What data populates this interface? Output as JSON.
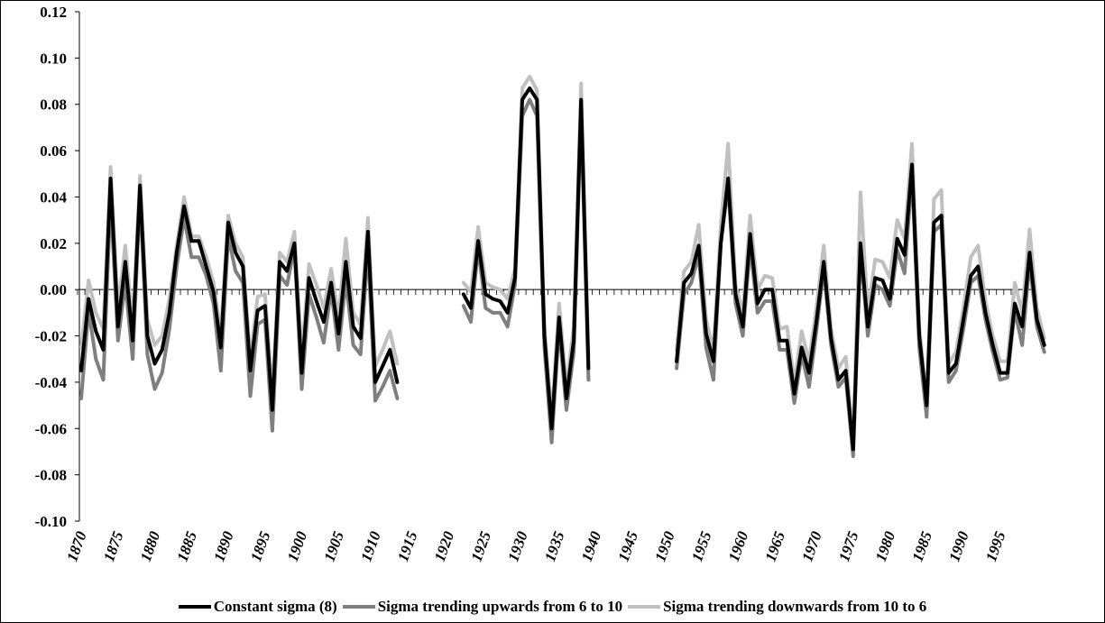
{
  "chart_data": {
    "type": "line",
    "title": "",
    "xlabel": "",
    "ylabel": "",
    "ylim": [
      -0.1,
      0.12
    ],
    "xlim": [
      1870,
      1999
    ],
    "y_ticks": [
      -0.1,
      -0.08,
      -0.06,
      -0.04,
      -0.02,
      0.0,
      0.02,
      0.04,
      0.06,
      0.08,
      0.1,
      0.12
    ],
    "y_tick_labels": [
      "-0.10",
      "-0.08",
      "-0.06",
      "-0.04",
      "-0.02",
      "0.00",
      "0.02",
      "0.04",
      "0.06",
      "0.08",
      "0.10",
      "0.12"
    ],
    "x_tick_labels": [
      "1870",
      "1875",
      "1880",
      "1885",
      "1890",
      "1895",
      "1900",
      "1905",
      "1910",
      "1915",
      "1920",
      "1925",
      "1930",
      "1935",
      "1940",
      "1945",
      "1950",
      "1955",
      "1960",
      "1965",
      "1970",
      "1975",
      "1980",
      "1985",
      "1990",
      "1995"
    ],
    "legend_position": "bottom",
    "grid": false,
    "series": [
      {
        "name": "Constant sigma (8)",
        "color": "#000000",
        "segments": [
          {
            "x_start": 1870,
            "values": [
              -0.035,
              -0.004,
              -0.018,
              -0.026,
              0.048,
              -0.016,
              0.012,
              -0.022,
              0.045,
              -0.02,
              -0.032,
              -0.026,
              -0.01,
              0.016,
              0.036,
              0.021,
              0.021,
              0.01,
              -0.001,
              -0.025,
              0.029,
              0.016,
              0.01,
              -0.035,
              -0.009,
              -0.007,
              -0.052,
              0.012,
              0.008,
              0.02,
              -0.036,
              0.005,
              -0.005,
              -0.014,
              0.003,
              -0.019,
              0.012,
              -0.016,
              -0.021,
              0.025,
              -0.04,
              -0.033,
              -0.026,
              -0.04
            ]
          },
          {
            "x_start": 1922,
            "values": [
              -0.002,
              -0.008,
              0.021,
              -0.002,
              -0.004,
              -0.005,
              -0.01,
              0.005,
              0.082,
              0.087,
              0.082,
              -0.02,
              -0.06,
              -0.012,
              -0.047,
              -0.022,
              0.082,
              -0.034
            ]
          },
          {
            "x_start": 1951,
            "values": [
              -0.031,
              0.003,
              0.007,
              0.019,
              -0.019,
              -0.031,
              0.02,
              0.048,
              -0.002,
              -0.016,
              0.024,
              -0.006,
              0,
              0,
              -0.022,
              -0.022,
              -0.045,
              -0.025,
              -0.036,
              -0.014,
              0.012,
              -0.021,
              -0.039,
              -0.035,
              -0.069,
              0.02,
              -0.016,
              0.005,
              0.004,
              -0.004,
              0.022,
              0.015,
              0.054,
              -0.02,
              -0.05,
              0.029,
              0.032,
              -0.036,
              -0.032,
              -0.013,
              0.006,
              0.01,
              -0.01,
              -0.024,
              -0.036,
              -0.036,
              -0.006,
              -0.016,
              0.016,
              -0.013,
              -0.024
            ]
          }
        ]
      },
      {
        "name": "Sigma trending upwards from 6 to 10",
        "color": "#7f7f7f",
        "segments": [
          {
            "x_start": 1870,
            "values": [
              -0.047,
              -0.009,
              -0.03,
              -0.039,
              0.04,
              -0.022,
              0.003,
              -0.03,
              0.041,
              -0.028,
              -0.043,
              -0.036,
              -0.017,
              0.01,
              0.031,
              0.014,
              0.014,
              0.006,
              -0.006,
              -0.035,
              0.023,
              0.008,
              0.003,
              -0.046,
              -0.015,
              -0.013,
              -0.061,
              0.006,
              0.002,
              0.018,
              -0.043,
              -0.002,
              -0.012,
              -0.023,
              0,
              -0.026,
              0.004,
              -0.024,
              -0.028,
              0.018,
              -0.048,
              -0.042,
              -0.035,
              -0.047
            ]
          },
          {
            "x_start": 1922,
            "values": [
              -0.007,
              -0.014,
              0.018,
              -0.008,
              -0.01,
              -0.01,
              -0.016,
              0.002,
              0.075,
              0.082,
              0.075,
              -0.025,
              -0.066,
              -0.016,
              -0.052,
              -0.027,
              0.077,
              -0.039
            ]
          },
          {
            "x_start": 1951,
            "values": [
              -0.034,
              -0.002,
              0.003,
              0.015,
              -0.025,
              -0.039,
              0.02,
              0.045,
              -0.006,
              -0.02,
              0.019,
              -0.01,
              -0.005,
              -0.005,
              -0.026,
              -0.026,
              -0.049,
              -0.028,
              -0.042,
              -0.018,
              0.009,
              -0.024,
              -0.042,
              -0.038,
              -0.072,
              0.017,
              -0.02,
              0.002,
              0,
              -0.007,
              0.017,
              0.007,
              0.05,
              -0.025,
              -0.055,
              0.025,
              0.028,
              -0.04,
              -0.035,
              -0.017,
              0.003,
              0.006,
              -0.013,
              -0.027,
              -0.039,
              -0.038,
              -0.009,
              -0.024,
              0.012,
              -0.016,
              -0.027
            ]
          }
        ]
      },
      {
        "name": "Sigma trending downwards from 10 to 6",
        "color": "#c0c0c0",
        "segments": [
          {
            "x_start": 1870,
            "values": [
              -0.025,
              0.004,
              -0.01,
              -0.017,
              0.053,
              -0.008,
              0.019,
              -0.015,
              0.049,
              -0.013,
              -0.024,
              -0.02,
              -0.004,
              0.019,
              0.04,
              0.023,
              0.023,
              0.014,
              0.003,
              -0.019,
              0.032,
              0.02,
              0.014,
              -0.03,
              -0.003,
              -0.002,
              -0.045,
              0.016,
              0.012,
              0.025,
              -0.029,
              0.011,
              0.002,
              -0.008,
              0.009,
              -0.012,
              0.022,
              -0.01,
              -0.015,
              0.031,
              -0.033,
              -0.026,
              -0.018,
              -0.032
            ]
          },
          {
            "x_start": 1922,
            "values": [
              0.003,
              -0.001,
              0.027,
              0.003,
              0.001,
              0,
              -0.004,
              0.009,
              0.087,
              0.092,
              0.086,
              -0.016,
              -0.055,
              -0.006,
              -0.042,
              -0.016,
              0.089,
              -0.029
            ]
          },
          {
            "x_start": 1951,
            "values": [
              -0.026,
              0.008,
              0.012,
              0.028,
              -0.013,
              -0.026,
              0.028,
              0.063,
              0.002,
              -0.01,
              0.032,
              0,
              0.006,
              0.005,
              -0.017,
              -0.016,
              -0.04,
              -0.018,
              -0.031,
              -0.008,
              0.019,
              -0.017,
              -0.034,
              -0.029,
              -0.066,
              0.042,
              -0.01,
              0.013,
              0.012,
              0.005,
              0.03,
              0.022,
              0.063,
              -0.016,
              -0.048,
              0.039,
              0.043,
              -0.032,
              -0.027,
              -0.008,
              0.014,
              0.019,
              -0.005,
              -0.02,
              -0.031,
              -0.031,
              0.003,
              -0.01,
              0.026,
              -0.008,
              -0.021
            ]
          }
        ]
      }
    ]
  }
}
